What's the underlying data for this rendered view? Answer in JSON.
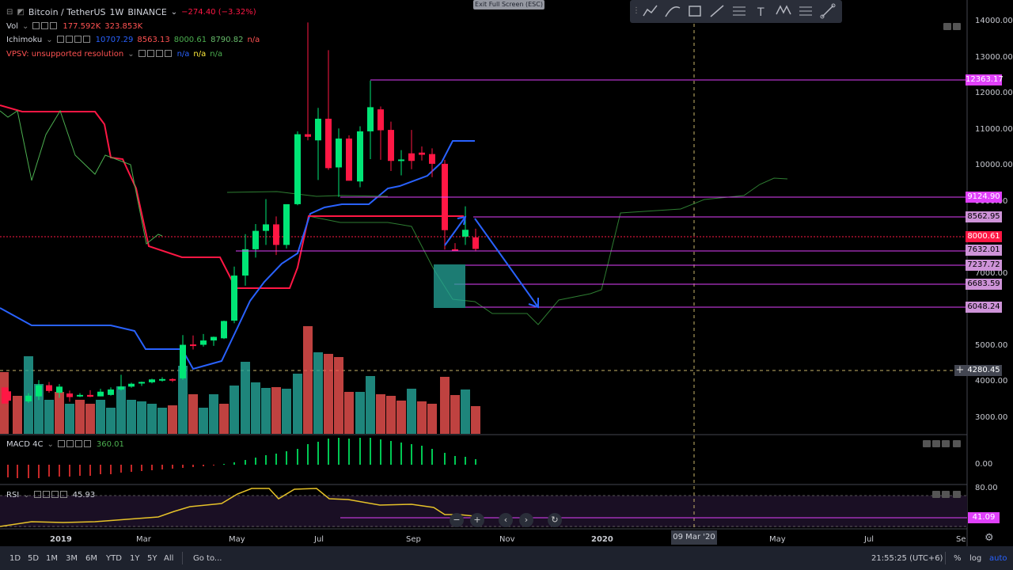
{
  "header": {
    "symbol": "Bitcoin / TetherUS",
    "interval": "1W",
    "exchange": "BINANCE",
    "change": "−274.40 (−3.32%)"
  },
  "indicators": {
    "vol_label": "Vol",
    "vol_v1": "177.592K",
    "vol_v2": "323.853K",
    "ichimoku_label": "Ichimoku",
    "ichi_v1": "10707.29",
    "ichi_v2": "8563.13",
    "ichi_v3": "8000.61",
    "ichi_v4": "8790.82",
    "ichi_v5": "n/a",
    "vpsv_label": "VPSV: unsupported resolution",
    "vpsv_v1": "n/a",
    "vpsv_v2": "n/a",
    "vpsv_v3": "n/a",
    "macd_label": "MACD 4C",
    "macd_value": "360.01",
    "rsi_label": "RSI",
    "rsi_value": "45.93"
  },
  "exit_fullscreen": "Exit Full Screen (ESC)",
  "price_axis": [
    "14000.00",
    "13000.00",
    "12000.00",
    "11000.00",
    "10000.00",
    "9000.00",
    "7000.00",
    "5000.00",
    "4000.00",
    "3000.00"
  ],
  "price_tags": {
    "t12363": "12363.17",
    "t9124": "9124.90",
    "t8562": "8562.95",
    "t8000": "8000.61",
    "t7632": "7632.01",
    "t7237": "7237.72",
    "t6683": "6683.59",
    "t6048": "6048.24",
    "t4280": "4280.45"
  },
  "macd_axis": "0.00",
  "rsi_axis": "80.00",
  "rsi_tag": "41.09",
  "time_axis": {
    "y2019": "2019",
    "mar": "Mar",
    "may": "May",
    "jul": "Jul",
    "sep": "Sep",
    "nov": "Nov",
    "y2020": "2020",
    "cursor_date": "09 Mar '20",
    "may2": "May",
    "jul2": "Jul",
    "se": "Se"
  },
  "bottom_bar": {
    "ranges": [
      "1D",
      "5D",
      "1M",
      "3M",
      "6M",
      "YTD",
      "1Y",
      "5Y",
      "All"
    ],
    "goto": "Go to...",
    "clock": "21:55:25 (UTC+6)",
    "pct": "%",
    "log": "log",
    "auto": "auto"
  },
  "colors": {
    "up": "#00e676",
    "down": "#ff1744",
    "vol_up": "#26a69a",
    "vol_down": "#ef5350",
    "magenta": "#e040fb",
    "tenkan": "#2962ff",
    "kijun": "#ff1744",
    "chikou": "#4caf50"
  }
}
